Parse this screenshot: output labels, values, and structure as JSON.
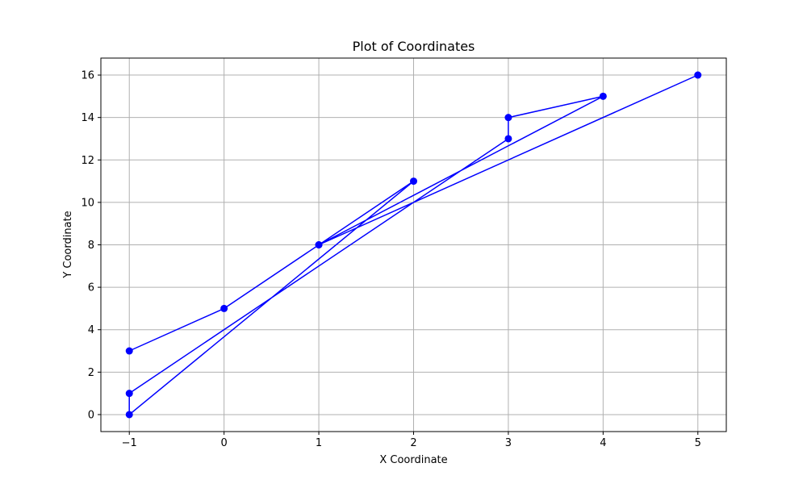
{
  "chart_data": {
    "type": "line",
    "title": "Plot of Coordinates",
    "xlabel": "X Coordinate",
    "ylabel": "Y Coordinate",
    "xlim": [
      -1.3,
      5.3
    ],
    "ylim": [
      -0.8,
      16.8
    ],
    "xticks": [
      -1,
      0,
      1,
      2,
      3,
      4,
      5
    ],
    "xtick_labels": [
      "−1",
      "0",
      "1",
      "2",
      "3",
      "4",
      "5"
    ],
    "yticks": [
      0,
      2,
      4,
      6,
      8,
      10,
      12,
      14,
      16
    ],
    "ytick_labels": [
      "0",
      "2",
      "4",
      "6",
      "8",
      "10",
      "12",
      "14",
      "16"
    ],
    "grid": true,
    "series": [
      {
        "color": "#0000ff",
        "marker": "circle",
        "points": [
          [
            -1,
            3
          ],
          [
            0,
            5
          ],
          [
            2,
            11
          ],
          [
            -1,
            0
          ],
          [
            -1,
            1
          ],
          [
            3,
            13
          ],
          [
            3,
            14
          ],
          [
            4,
            15
          ],
          [
            1,
            8
          ],
          [
            5,
            16
          ],
          [
            1,
            8
          ]
        ]
      }
    ]
  }
}
